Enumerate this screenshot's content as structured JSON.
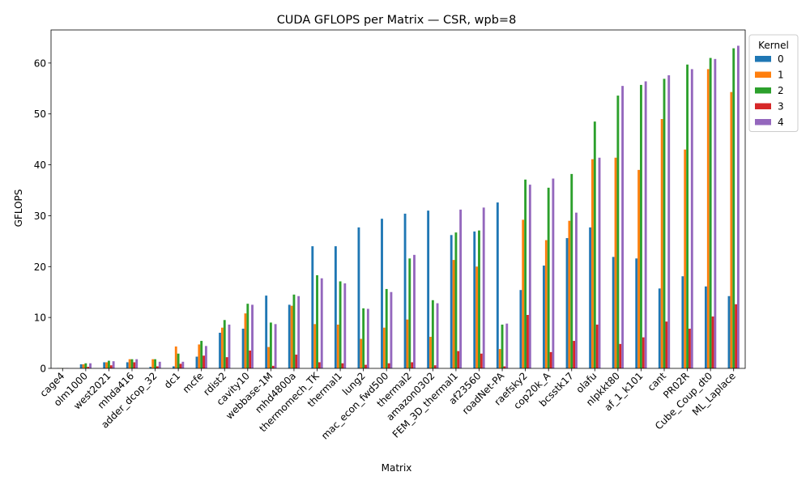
{
  "chart_data": {
    "type": "bar",
    "title": "CUDA GFLOPS per Matrix — CSR, wpb=8",
    "xlabel": "Matrix",
    "ylabel": "GFLOPS",
    "ylim": [
      0,
      66.5
    ],
    "yticks": [
      0,
      10,
      20,
      30,
      40,
      50,
      60
    ],
    "grid": false,
    "legend": {
      "title": "Kernel",
      "placement": "outside-top-right"
    },
    "categories": [
      "cage4",
      "olm1000",
      "west2021",
      "mhda416",
      "adder_dcop_32",
      "dc1",
      "mcfe",
      "rdist2",
      "cavity10",
      "webbase-1M",
      "mhd4800a",
      "thermomech_TK",
      "thermal1",
      "lung2",
      "mac_econ_fwd500",
      "thermal2",
      "amazon0302",
      "FEM_3D_thermal1",
      "af23560",
      "roadNet-PA",
      "raefsky2",
      "cop20k_A",
      "bcsstk17",
      "olafu",
      "nlpkkt80",
      "af_1_k101",
      "cant",
      "PR02R",
      "Cube_Coup_dt0",
      "ML_Laplace"
    ],
    "series": [
      {
        "name": "0",
        "color": "#1f77b4",
        "values": [
          0.05,
          0.8,
          1.2,
          1.2,
          0.3,
          0.4,
          2.3,
          7.0,
          7.8,
          14.3,
          12.5,
          24.0,
          24.0,
          27.7,
          29.4,
          30.4,
          31.0,
          26.2,
          26.9,
          32.6,
          15.4,
          20.2,
          25.6,
          27.7,
          21.9,
          21.6,
          15.7,
          18.1,
          16.1,
          14.2
        ]
      },
      {
        "name": "1",
        "color": "#ff7f0e",
        "values": [
          0.05,
          0.8,
          1.2,
          1.8,
          1.8,
          4.3,
          4.7,
          8.0,
          10.8,
          4.2,
          12.3,
          8.7,
          8.6,
          5.8,
          8.0,
          9.6,
          6.2,
          21.3,
          20.0,
          3.8,
          29.2,
          25.2,
          29.0,
          41.1,
          41.4,
          39.0,
          49.0,
          43.0,
          58.8,
          54.3
        ]
      },
      {
        "name": "2",
        "color": "#2ca02c",
        "values": [
          0.05,
          1.0,
          1.5,
          1.8,
          1.8,
          2.9,
          5.4,
          9.5,
          12.7,
          9.0,
          14.5,
          18.3,
          17.1,
          11.8,
          15.6,
          21.6,
          13.4,
          26.7,
          27.1,
          8.6,
          37.1,
          35.5,
          38.2,
          48.5,
          53.6,
          55.7,
          56.9,
          59.7,
          61.0,
          62.9
        ]
      },
      {
        "name": "3",
        "color": "#d62728",
        "values": [
          0.02,
          0.3,
          0.6,
          1.2,
          0.4,
          0.9,
          2.5,
          2.2,
          3.5,
          0.5,
          2.7,
          1.2,
          1.0,
          0.7,
          1.0,
          1.2,
          0.6,
          3.4,
          2.9,
          0.4,
          10.5,
          3.2,
          5.4,
          8.6,
          4.8,
          6.1,
          9.2,
          7.8,
          10.2,
          12.6
        ]
      },
      {
        "name": "4",
        "color": "#9467bd",
        "values": [
          0.05,
          1.0,
          1.4,
          1.8,
          1.3,
          1.3,
          4.4,
          8.6,
          12.5,
          8.7,
          14.2,
          17.7,
          16.7,
          11.7,
          15.0,
          22.3,
          12.8,
          31.2,
          31.6,
          8.8,
          36.1,
          37.3,
          30.6,
          41.4,
          55.5,
          56.4,
          57.6,
          58.8,
          60.8,
          63.4
        ]
      }
    ]
  }
}
